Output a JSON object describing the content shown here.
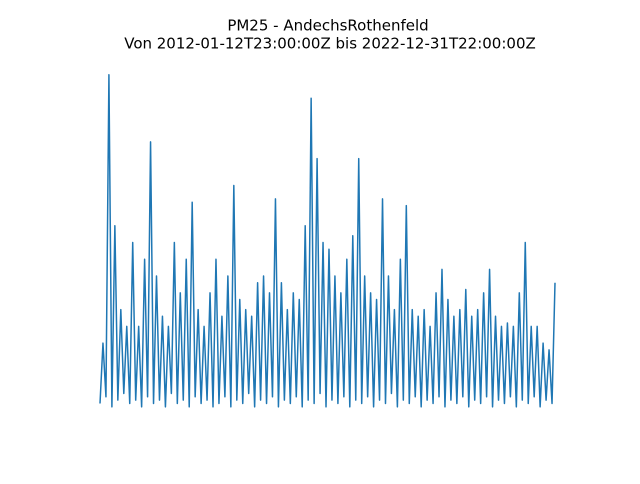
{
  "chart_data": {
    "type": "line",
    "title": "PM25 - AndechsRothenfeld",
    "subtitle": "Von 2012-01-12T23:00:00Z bis 2022-12-31T22:00:00Z",
    "color": "#1f77b4",
    "ylim": [
      -5,
      105
    ],
    "values": [
      2,
      20,
      4,
      100,
      1,
      55,
      3,
      30,
      5,
      25,
      2,
      50,
      3,
      25,
      1,
      45,
      4,
      80,
      2,
      40,
      3,
      28,
      1,
      25,
      5,
      50,
      2,
      35,
      3,
      45,
      1,
      62,
      4,
      30,
      2,
      25,
      3,
      35,
      1,
      45,
      2,
      28,
      4,
      40,
      1,
      67,
      3,
      33,
      2,
      30,
      5,
      28,
      1,
      38,
      3,
      40,
      2,
      35,
      4,
      63,
      1,
      38,
      3,
      30,
      2,
      35,
      4,
      33,
      1,
      55,
      3,
      93,
      2,
      75,
      5,
      50,
      1,
      48,
      3,
      40,
      2,
      35,
      4,
      45,
      1,
      52,
      3,
      75,
      2,
      40,
      4,
      35,
      1,
      33,
      3,
      63,
      2,
      40,
      5,
      30,
      1,
      45,
      3,
      61,
      2,
      30,
      4,
      28,
      1,
      30,
      3,
      25,
      2,
      35,
      4,
      42,
      1,
      33,
      3,
      28,
      2,
      30,
      4,
      36,
      1,
      28,
      3,
      30,
      2,
      35,
      4,
      42,
      1,
      28,
      3,
      25,
      2,
      26,
      4,
      25,
      1,
      35,
      3,
      50,
      2,
      25,
      4,
      25,
      1,
      20,
      3,
      18,
      2,
      38
    ]
  }
}
